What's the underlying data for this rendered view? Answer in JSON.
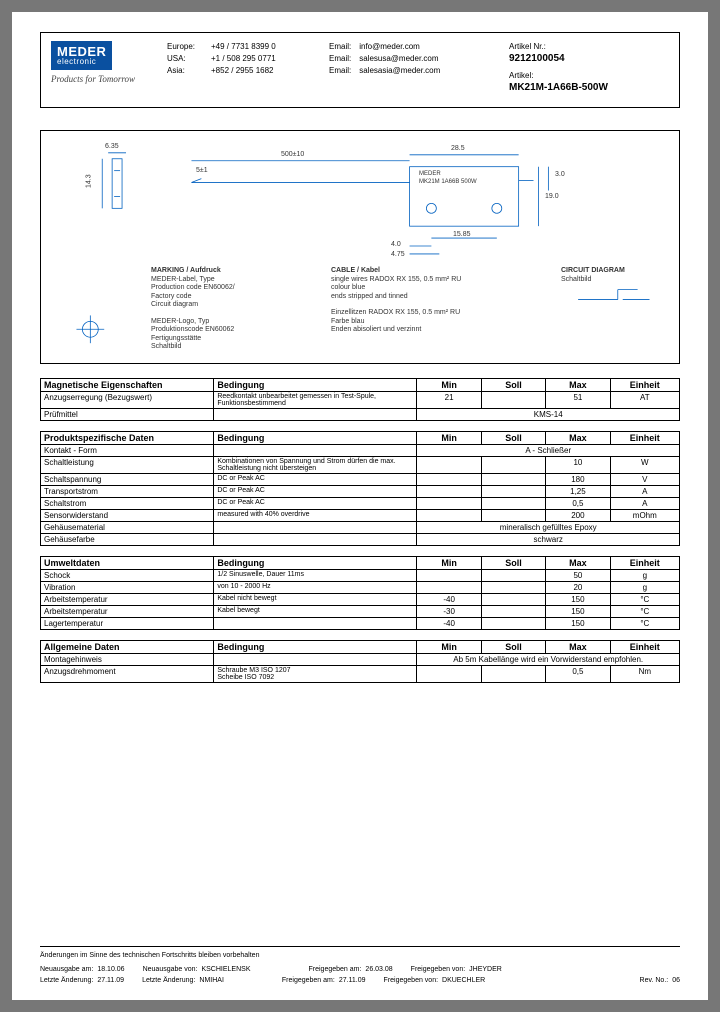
{
  "brand": {
    "name": "MEDER",
    "sub": "electronic",
    "tagline": "Products for Tomorrow"
  },
  "contacts": [
    {
      "region": "Europe:",
      "phone": "+49 / 7731 8399 0",
      "email_lbl": "Email:",
      "email": "info@meder.com"
    },
    {
      "region": "USA:",
      "phone": "+1 / 508 295 0771",
      "email_lbl": "Email:",
      "email": "salesusa@meder.com"
    },
    {
      "region": "Asia:",
      "phone": "+852 / 2955 1682",
      "email_lbl": "Email:",
      "email": "salesasia@meder.com"
    }
  ],
  "article": {
    "nr_lbl": "Artikel Nr.:",
    "nr": "9212100054",
    "name_lbl": "Artikel:",
    "name": "MK21M-1A66B-500W"
  },
  "diagram": {
    "dim_left": "6.35",
    "dim_h": "14.3",
    "dim_cable": "500±10",
    "dim_tin": "5±1",
    "dim_w": "28.5",
    "dim_body_h1": "3.0",
    "dim_body_h2": "19.0",
    "dim_pitch": "15.85",
    "dim_hole1": "4.0",
    "dim_hole2": "4.75",
    "part_label1": "MEDER",
    "part_label2": "MK21M 1A66B 500W",
    "marking_title": "MARKING / Aufdruck",
    "marking_lines": [
      "MEDER-Label, Type",
      "Production code EN60062/",
      "Factory code",
      "Circuit diagram",
      "",
      "MEDER-Logo, Typ",
      "Produktionscode EN60062",
      "Fertigungsstätte",
      "Schaltbild"
    ],
    "cable_title": "CABLE / Kabel",
    "cable_lines": [
      "single wires RADOX RX 155, 0.5 mm² RU",
      "colour blue",
      "ends stripped and tinned",
      "",
      "Einzellitzen RADOX RX 155, 0.5 mm² RU",
      "Farbe blau",
      "Enden abisoliert und verzinnt"
    ],
    "circuit_title": "CIRCUIT DIAGRAM",
    "circuit_sub": "Schaltbild"
  },
  "tables": {
    "hdr": {
      "cond": "Bedingung",
      "min": "Min",
      "soll": "Soll",
      "max": "Max",
      "unit": "Einheit"
    },
    "mag": {
      "title": "Magnetische Eigenschaften",
      "rows": [
        {
          "label": "Anzugserregung (Bezugswert)",
          "cond": "Reedkontakt unbearbeitet gemessen in Test-Spule, Funktionsbestimmend",
          "min": "21",
          "soll": "",
          "max": "51",
          "unit": "AT"
        },
        {
          "label": "Prüfmittel",
          "span": "KMS-14"
        }
      ]
    },
    "prod": {
      "title": "Produktspezifische Daten",
      "rows": [
        {
          "label": "Kontakt - Form",
          "span": "A - Schließer"
        },
        {
          "label": "Schaltleistung",
          "cond": "Kombinationen von Spannung und Strom dürfen die max. Schaltleistung nicht übersteigen",
          "min": "",
          "soll": "",
          "max": "10",
          "unit": "W"
        },
        {
          "label": "Schaltspannung",
          "cond": "DC or Peak AC",
          "min": "",
          "soll": "",
          "max": "180",
          "unit": "V"
        },
        {
          "label": "Transportstrom",
          "cond": "DC or Peak AC",
          "min": "",
          "soll": "",
          "max": "1,25",
          "unit": "A"
        },
        {
          "label": "Schaltstrom",
          "cond": "DC or Peak AC",
          "min": "",
          "soll": "",
          "max": "0,5",
          "unit": "A"
        },
        {
          "label": "Sensorwiderstand",
          "cond": "measured with 40% overdrive",
          "min": "",
          "soll": "",
          "max": "200",
          "unit": "mOhm"
        },
        {
          "label": "Gehäusematerial",
          "span": "mineralisch gefülltes Epoxy"
        },
        {
          "label": "Gehäusefarbe",
          "span": "schwarz"
        }
      ]
    },
    "env": {
      "title": "Umweltdaten",
      "rows": [
        {
          "label": "Schock",
          "cond": "1/2 Sinuswelle, Dauer 11ms",
          "min": "",
          "soll": "",
          "max": "50",
          "unit": "g"
        },
        {
          "label": "Vibration",
          "cond": "von 10 - 2000 Hz",
          "min": "",
          "soll": "",
          "max": "20",
          "unit": "g"
        },
        {
          "label": "Arbeitstemperatur",
          "cond": "Kabel nicht bewegt",
          "min": "-40",
          "soll": "",
          "max": "150",
          "unit": "°C"
        },
        {
          "label": "Arbeitstemperatur",
          "cond": "Kabel bewegt",
          "min": "-30",
          "soll": "",
          "max": "150",
          "unit": "°C"
        },
        {
          "label": "Lagertemperatur",
          "cond": "",
          "min": "-40",
          "soll": "",
          "max": "150",
          "unit": "°C"
        }
      ]
    },
    "gen": {
      "title": "Allgemeine Daten",
      "rows": [
        {
          "label": "Montagehinweis",
          "span": "Ab 5m Kabellänge wird ein Vorwiderstand empfohlen."
        },
        {
          "label": "Anzugsdrehmoment",
          "cond": "Schraube M3 ISO 1207\nScheibe ISO 7092",
          "min": "",
          "soll": "",
          "max": "0,5",
          "unit": "Nm"
        }
      ]
    }
  },
  "footer": {
    "note": "Änderungen im Sinne des technischen Fortschritts bleiben vorbehalten",
    "r1": {
      "a_lbl": "Neuausgabe am:",
      "a": "18.10.06",
      "b_lbl": "Neuausgabe von:",
      "b": "KSCHIELENSK",
      "c_lbl": "Freigegeben am:",
      "c": "26.03.08",
      "d_lbl": "Freigegeben von:",
      "d": "JHEYDER"
    },
    "r2": {
      "a_lbl": "Letzte Änderung:",
      "a": "27.11.09",
      "b_lbl": "Letzte Änderung:",
      "b": "NMIHAI",
      "c_lbl": "Freigegeben am:",
      "c": "27.11.09",
      "d_lbl": "Freigegeben von:",
      "d": "DKUECHLER",
      "e_lbl": "Rev. No.:",
      "e": "06"
    }
  }
}
